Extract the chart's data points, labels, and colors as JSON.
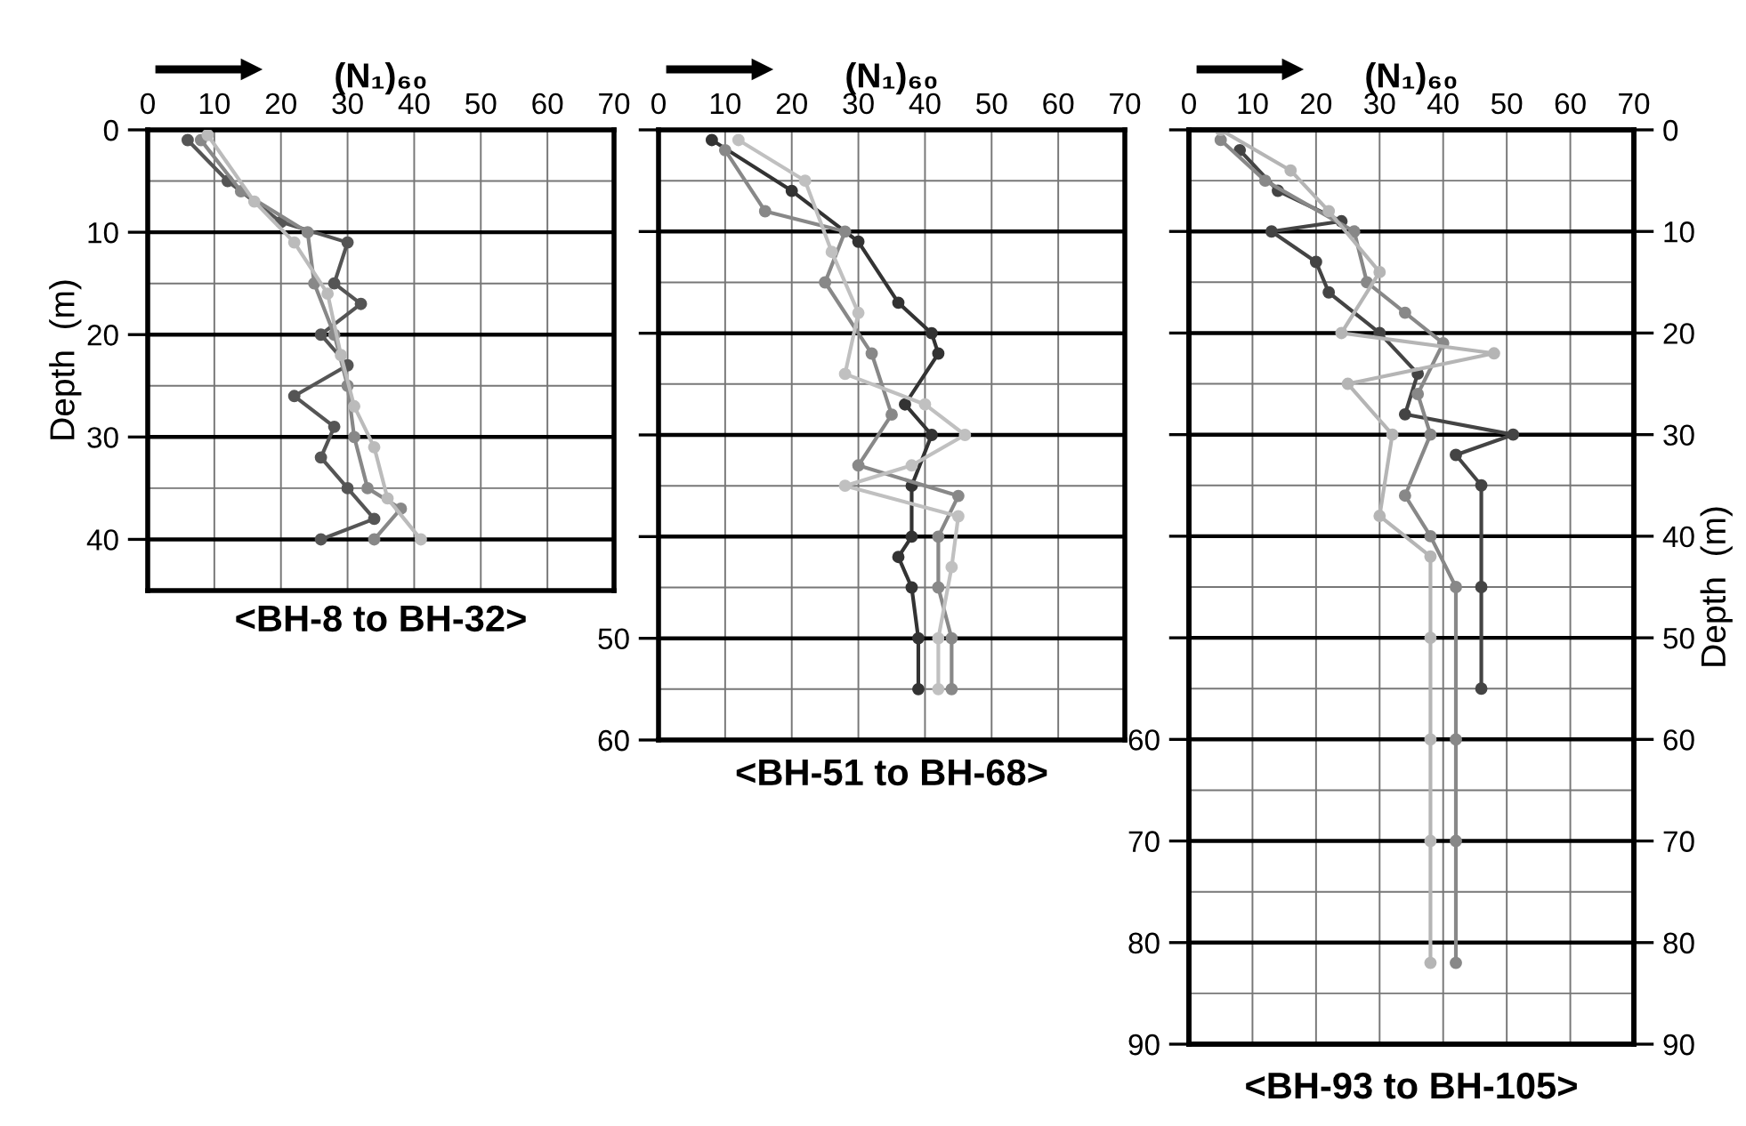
{
  "chart_data": [
    {
      "type": "line",
      "title": "<BH-8 to BH-32>",
      "xlabel": "(N₁)₆₀",
      "ylabel": "Depth  (m)",
      "xlim": [
        0,
        70
      ],
      "xticks": [
        0,
        10,
        20,
        30,
        40,
        50,
        60,
        70
      ],
      "ylim": [
        45,
        0
      ],
      "yticks": [
        0,
        10,
        20,
        30,
        40
      ],
      "grid": true,
      "marker": "circle",
      "line_style": "solid",
      "series": [
        {
          "color": "#555555",
          "x": [
            6,
            12,
            20,
            30,
            28,
            32,
            26,
            30,
            22,
            28,
            26,
            30,
            34,
            26
          ],
          "values": [
            1,
            5,
            9,
            11,
            15,
            17,
            20,
            23,
            26,
            29,
            32,
            35,
            38,
            40
          ]
        },
        {
          "color": "#888888",
          "x": [
            8,
            14,
            24,
            25,
            28,
            30,
            31,
            33,
            38,
            34
          ],
          "values": [
            1,
            6,
            10,
            15,
            20,
            25,
            30,
            35,
            37,
            40
          ]
        },
        {
          "color": "#bbbbbb",
          "x": [
            9,
            16,
            22,
            27,
            29,
            31,
            34,
            36,
            41
          ],
          "values": [
            0.5,
            7,
            11,
            16,
            22,
            27,
            31,
            36,
            40
          ]
        }
      ]
    },
    {
      "type": "line",
      "title": "<BH-51 to BH-68>",
      "xlabel": "(N₁)₆₀",
      "xlim": [
        0,
        70
      ],
      "xticks": [
        0,
        10,
        20,
        30,
        40,
        50,
        60,
        70
      ],
      "ylim": [
        60,
        0
      ],
      "yticks": [
        {
          "value": 0,
          "label": null
        },
        {
          "value": 10,
          "label": null
        },
        {
          "value": 20,
          "label": null
        },
        {
          "value": 30,
          "label": null
        },
        {
          "value": 40,
          "label": null
        },
        50,
        60
      ],
      "grid": true,
      "marker": "circle",
      "line_style": "solid",
      "series": [
        {
          "color": "#333333",
          "x": [
            8,
            20,
            30,
            36,
            41,
            42,
            37,
            41,
            38,
            38,
            36,
            38,
            39,
            39
          ],
          "values": [
            1,
            6,
            11,
            17,
            20,
            22,
            27,
            30,
            35,
            40,
            42,
            45,
            50,
            55
          ]
        },
        {
          "color": "#888888",
          "x": [
            10,
            16,
            28,
            25,
            32,
            35,
            30,
            45,
            42,
            42,
            44,
            44
          ],
          "values": [
            2,
            8,
            10,
            15,
            22,
            28,
            33,
            36,
            40,
            45,
            50,
            55
          ]
        },
        {
          "color": "#c0c0c0",
          "x": [
            12,
            22,
            26,
            30,
            28,
            40,
            46,
            38,
            28,
            45,
            44,
            42,
            42
          ],
          "values": [
            1,
            5,
            12,
            18,
            24,
            27,
            30,
            33,
            35,
            38,
            43,
            50,
            55
          ]
        }
      ]
    },
    {
      "type": "line",
      "title": "<BH-93 to BH-105>",
      "xlabel": "(N₁)₆₀",
      "y2label": "Depth  (m)",
      "xlim": [
        0,
        70
      ],
      "xticks": [
        0,
        10,
        20,
        30,
        40,
        50,
        60,
        70
      ],
      "ylim": [
        90,
        0
      ],
      "yticks": [
        {
          "value": 0,
          "label": null
        },
        {
          "value": 10,
          "label": null
        },
        {
          "value": 20,
          "label": null
        },
        {
          "value": 30,
          "label": null
        },
        {
          "value": 40,
          "label": null
        },
        {
          "value": 50,
          "label": null
        },
        60,
        70,
        80,
        90
      ],
      "y2lim": [
        90,
        0
      ],
      "y2ticks": [
        0,
        10,
        20,
        30,
        40,
        50,
        60,
        70,
        80,
        90
      ],
      "grid": true,
      "marker": "circle",
      "line_style": "solid",
      "series": [
        {
          "color": "#444444",
          "x": [
            8,
            14,
            24,
            13,
            20,
            22,
            30,
            36,
            34,
            51,
            42,
            46,
            46,
            46
          ],
          "values": [
            2,
            6,
            9,
            10,
            13,
            16,
            20,
            24,
            28,
            30,
            32,
            35,
            45,
            55
          ]
        },
        {
          "color": "#888888",
          "x": [
            5,
            12,
            26,
            28,
            34,
            40,
            36,
            38,
            34,
            38,
            42,
            42,
            42,
            42
          ],
          "values": [
            1,
            5,
            10,
            15,
            18,
            21,
            26,
            30,
            36,
            40,
            45,
            60,
            70,
            82
          ]
        },
        {
          "color": "#b5b5b5",
          "x": [
            5,
            16,
            22,
            30,
            24,
            48,
            25,
            32,
            30,
            38,
            38,
            38,
            38,
            38
          ],
          "values": [
            0,
            4,
            8,
            14,
            20,
            22,
            25,
            30,
            38,
            42,
            50,
            60,
            70,
            82
          ]
        }
      ]
    }
  ]
}
